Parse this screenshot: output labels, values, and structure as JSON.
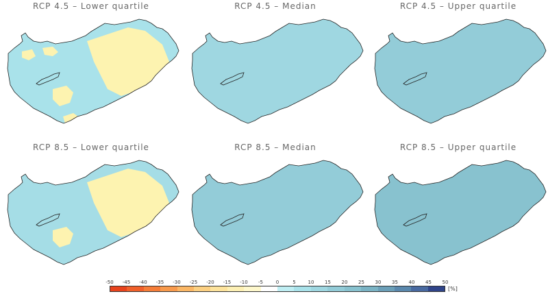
{
  "panels": [
    {
      "title": "RCP 4.5 – Lower quartile",
      "fill": "#a9e2ea",
      "patches": [
        {
          "color": "#fdf3b0"
        },
        {
          "color": "#fdf3b0"
        },
        {
          "color": "#fdf3b0"
        },
        {
          "color": "#fdf3b0"
        },
        {
          "color": "#fdf3b0"
        }
      ]
    },
    {
      "title": "RCP 4.5 – Median",
      "fill": "#9fd7e1",
      "patches": []
    },
    {
      "title": "RCP 4.5 – Upper quartile",
      "fill": "#93ccd8",
      "patches": []
    },
    {
      "title": "RCP 8.5 – Lower quartile",
      "fill": "#a5dde6",
      "patches": [
        {
          "color": "#fdf3b0"
        },
        {
          "color": "#fdf3b0"
        }
      ]
    },
    {
      "title": "RCP 8.5 – Median",
      "fill": "#93ccd8",
      "patches": []
    },
    {
      "title": "RCP 8.5 – Upper quartile",
      "fill": "#88c2cf",
      "patches": []
    }
  ],
  "legend": {
    "ticks": [
      "-50",
      "-45",
      "-40",
      "-35",
      "-30",
      "-25",
      "-20",
      "-15",
      "-10",
      "-5",
      "0",
      "5",
      "10",
      "15",
      "20",
      "25",
      "30",
      "35",
      "40",
      "45",
      "50"
    ],
    "unit": "[%]",
    "colors": [
      "#e8431c",
      "#f0602a",
      "#f57d38",
      "#f89a4c",
      "#fbb765",
      "#fcd082",
      "#fde39c",
      "#fdf0b4",
      "#fef8cc",
      "#ffffff",
      "#bfeef3",
      "#a9e2ea",
      "#9fd7e1",
      "#93ccd8",
      "#88c2cf",
      "#7ab3c4",
      "#6b9fb8",
      "#5a88ad",
      "#4869a0",
      "#2f4489"
    ]
  }
}
